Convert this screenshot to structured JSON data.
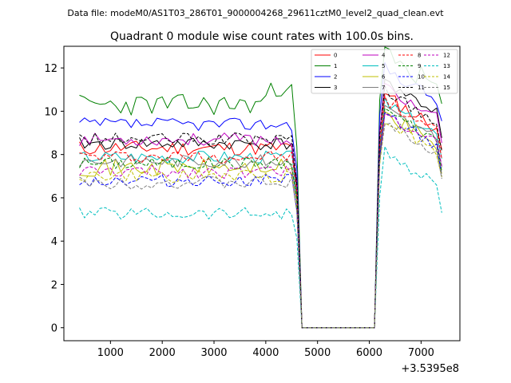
{
  "chart_data": {
    "type": "line",
    "header": "Data file: modeM0/AS1T03_286T01_9000004268_29611cztM0_level2_quad_clean.evt",
    "title": "Quadrant 0 module wise count rates with 100.0s bins.",
    "xlabel": "",
    "ylabel": "",
    "x_offset_label": "+3.5395e8",
    "xlim": [
      100,
      7750
    ],
    "ylim": [
      -0.6,
      13.0
    ],
    "xticks": [
      1000,
      2000,
      3000,
      4000,
      5000,
      6000,
      7000
    ],
    "yticks": [
      0,
      2,
      4,
      6,
      8,
      10,
      12
    ],
    "x": [
      400,
      500,
      600,
      700,
      800,
      900,
      1000,
      1100,
      1200,
      1300,
      1400,
      1500,
      1600,
      1700,
      1800,
      1900,
      2000,
      2100,
      2200,
      2300,
      2400,
      2500,
      2600,
      2700,
      2800,
      2900,
      3000,
      3100,
      3200,
      3300,
      3400,
      3500,
      3600,
      3700,
      3800,
      3900,
      4000,
      4100,
      4200,
      4300,
      4400,
      4500,
      4600,
      4700,
      4800,
      4900,
      5000,
      5100,
      5200,
      5300,
      5400,
      5500,
      5600,
      5700,
      5800,
      5900,
      6000,
      6100,
      6200,
      6300,
      6400,
      6500,
      6600,
      6700,
      6800,
      6900,
      7000,
      7100,
      7200,
      7300,
      7400
    ],
    "legend_position": "top-right",
    "series": [
      {
        "name": "0",
        "color": "#ff0000",
        "style": "solid",
        "base": 8.3,
        "post": 9.5,
        "amp": 0.35,
        "seed": 11
      },
      {
        "name": "1",
        "color": "#008000",
        "style": "solid",
        "base": 10.3,
        "post": 11.4,
        "amp": 0.5,
        "seed": 23,
        "peak": 11.2
      },
      {
        "name": "2",
        "color": "#0000ff",
        "style": "solid",
        "base": 9.4,
        "post": 10.8,
        "amp": 0.3,
        "seed": 37
      },
      {
        "name": "3",
        "color": "#000000",
        "style": "solid",
        "base": 8.5,
        "post": 10.2,
        "amp": 0.3,
        "seed": 41
      },
      {
        "name": "4",
        "color": "#bf00bf",
        "style": "solid",
        "base": 8.7,
        "post": 9.9,
        "amp": 0.3,
        "seed": 53
      },
      {
        "name": "5",
        "color": "#00bfbf",
        "style": "solid",
        "base": 7.9,
        "post": 9.2,
        "amp": 0.3,
        "seed": 67
      },
      {
        "name": "6",
        "color": "#bfbf00",
        "style": "solid",
        "base": 7.4,
        "post": 8.7,
        "amp": 0.4,
        "seed": 71
      },
      {
        "name": "7",
        "color": "#7f7f7f",
        "style": "solid",
        "base": 7.7,
        "post": 8.9,
        "amp": 0.3,
        "seed": 83
      },
      {
        "name": "8",
        "color": "#ff0000",
        "style": "dashed",
        "base": 7.9,
        "post": 9.3,
        "amp": 0.3,
        "seed": 97
      },
      {
        "name": "9",
        "color": "#008000",
        "style": "dashed",
        "base": 7.6,
        "post": 8.9,
        "amp": 0.3,
        "seed": 101
      },
      {
        "name": "10",
        "color": "#0000ff",
        "style": "dashed",
        "base": 6.8,
        "post": 8.6,
        "amp": 0.3,
        "seed": 113
      },
      {
        "name": "11",
        "color": "#000000",
        "style": "dashed",
        "base": 8.7,
        "post": 9.8,
        "amp": 0.3,
        "seed": 127
      },
      {
        "name": "12",
        "color": "#bf00bf",
        "style": "dashed",
        "base": 7.2,
        "post": 8.7,
        "amp": 0.3,
        "seed": 131
      },
      {
        "name": "13",
        "color": "#00bfbf",
        "style": "dashed",
        "base": 5.3,
        "post": 6.9,
        "amp": 0.3,
        "seed": 139
      },
      {
        "name": "14",
        "color": "#bfbf00",
        "style": "dashed",
        "base": 7.0,
        "post": 8.4,
        "amp": 0.3,
        "seed": 149
      },
      {
        "name": "15",
        "color": "#7f7f7f",
        "style": "dashed",
        "base": 6.7,
        "post": 8.4,
        "amp": 0.3,
        "seed": 151
      }
    ]
  }
}
